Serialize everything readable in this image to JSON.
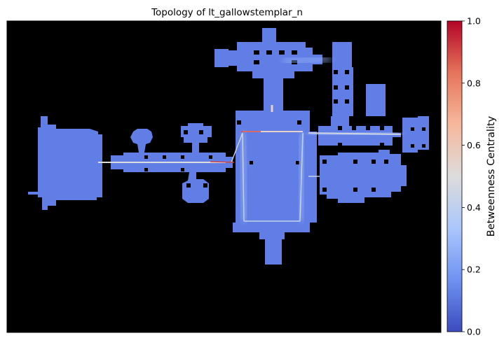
{
  "chart_data": {
    "type": "heatmap",
    "title": "Topology of lt_gallowstemplar_n",
    "xlabel": "",
    "ylabel": "",
    "background": "#000000",
    "colormap": "coolwarm",
    "colormap_stops": [
      "#3b4cc0",
      "#6f92f3",
      "#aac7fd",
      "#dddcdc",
      "#f7b89c",
      "#e7745b",
      "#b40426"
    ],
    "colorbar": {
      "label": "Betweenness Centrality",
      "range": [
        0.0,
        1.0
      ],
      "ticks": [
        0.0,
        0.2,
        0.4,
        0.6,
        0.8,
        1.0
      ],
      "tick_labels": [
        "0.0",
        "0.2",
        "0.4",
        "0.6",
        "0.8",
        "1.0"
      ],
      "position": "right"
    },
    "map_base_value": 0.12,
    "corridor_values": {
      "main_hall": 0.5,
      "upper_link": 0.55,
      "red_segment": 0.9
    }
  }
}
